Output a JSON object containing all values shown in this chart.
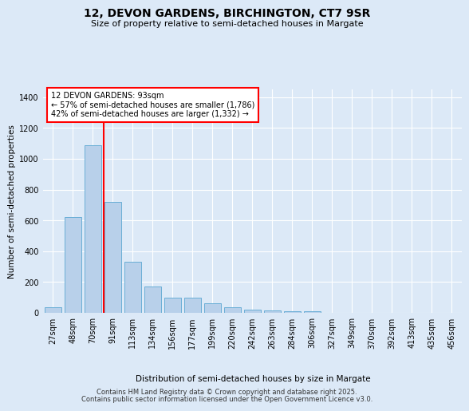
{
  "title_line1": "12, DEVON GARDENS, BIRCHINGTON, CT7 9SR",
  "title_line2": "Size of property relative to semi-detached houses in Margate",
  "xlabel": "Distribution of semi-detached houses by size in Margate",
  "ylabel": "Number of semi-detached properties",
  "categories": [
    "27sqm",
    "48sqm",
    "70sqm",
    "91sqm",
    "113sqm",
    "134sqm",
    "156sqm",
    "177sqm",
    "199sqm",
    "220sqm",
    "242sqm",
    "263sqm",
    "284sqm",
    "306sqm",
    "327sqm",
    "349sqm",
    "370sqm",
    "392sqm",
    "413sqm",
    "435sqm",
    "456sqm"
  ],
  "values": [
    38,
    620,
    1090,
    720,
    330,
    170,
    98,
    98,
    62,
    38,
    22,
    15,
    10,
    8,
    0,
    0,
    0,
    0,
    0,
    0,
    0
  ],
  "bar_color": "#b8d0ea",
  "bar_edge_color": "#6aaed6",
  "red_line_bin_index": 3,
  "annotation_title": "12 DEVON GARDENS: 93sqm",
  "annotation_line2": "← 57% of semi-detached houses are smaller (1,786)",
  "annotation_line3": "42% of semi-detached houses are larger (1,332) →",
  "ylim": [
    0,
    1450
  ],
  "yticks": [
    0,
    200,
    400,
    600,
    800,
    1000,
    1200,
    1400
  ],
  "footer_line1": "Contains HM Land Registry data © Crown copyright and database right 2025.",
  "footer_line2": "Contains public sector information licensed under the Open Government Licence v3.0.",
  "background_color": "#dce9f7",
  "plot_bg_color": "#dce9f7"
}
